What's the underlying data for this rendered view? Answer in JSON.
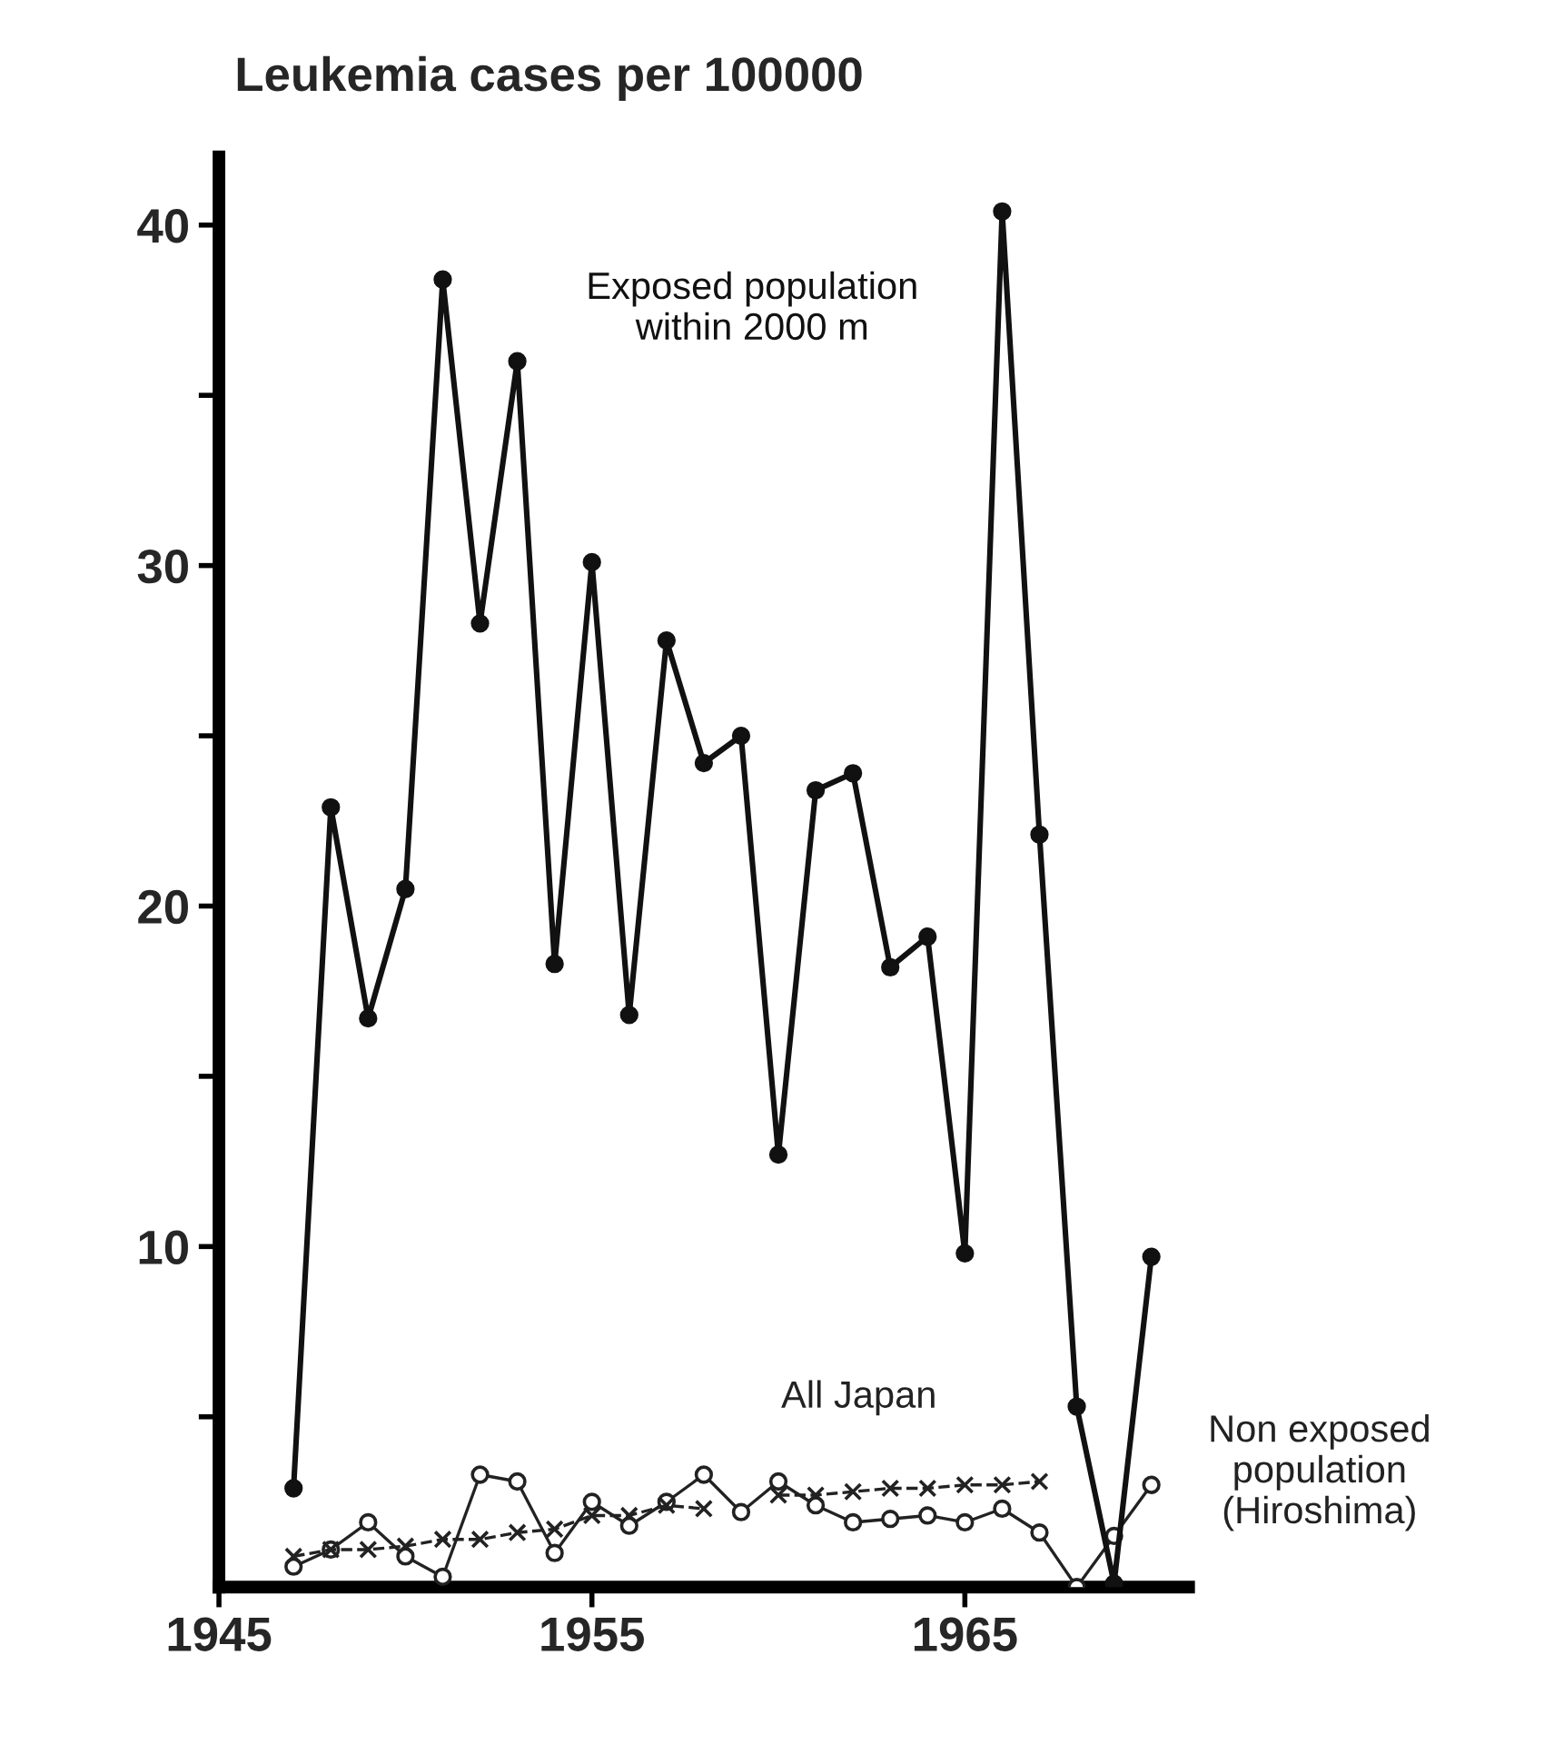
{
  "chart_data": {
    "type": "line",
    "title": "Leukemia cases per 100000",
    "x": [
      1947,
      1948,
      1949,
      1950,
      1951,
      1952,
      1953,
      1954,
      1955,
      1956,
      1957,
      1958,
      1959,
      1960,
      1961,
      1962,
      1963,
      1964,
      1965,
      1966,
      1967,
      1968,
      1969,
      1970
    ],
    "series": [
      {
        "name": "Exposed population\nwithin 2000 m",
        "color": "#111111",
        "marker": "circle",
        "line_style": "solid",
        "values": [
          2.9,
          22.9,
          16.7,
          20.5,
          38.4,
          28.3,
          36.0,
          18.3,
          30.1,
          16.8,
          27.8,
          24.2,
          25.0,
          12.7,
          23.4,
          23.9,
          18.2,
          19.1,
          9.8,
          40.4,
          22.1,
          5.3,
          0.1,
          9.7
        ]
      },
      {
        "name": "All Japan",
        "color": "#222222",
        "marker": "cross",
        "line_style": "dashed",
        "values": [
          0.9,
          1.1,
          1.1,
          1.2,
          1.4,
          1.4,
          1.6,
          1.7,
          2.1,
          2.1,
          2.4,
          2.3,
          null,
          2.7,
          2.7,
          2.8,
          2.9,
          2.9,
          3.0,
          3.0,
          3.1,
          null,
          null,
          null
        ]
      },
      {
        "name": "Non exposed\npopulation\n(Hiroshima)",
        "color": "#222222",
        "marker": "circle_open",
        "line_style": "solid",
        "values": [
          0.6,
          1.1,
          1.9,
          0.9,
          0.3,
          3.3,
          3.1,
          1.0,
          2.5,
          1.8,
          2.5,
          3.3,
          2.2,
          3.1,
          2.4,
          1.9,
          2.0,
          2.1,
          1.9,
          2.3,
          1.6,
          0.0,
          1.5,
          3.0
        ]
      }
    ],
    "xlim": [
      1945,
      1971
    ],
    "xticks": [
      1945,
      1955,
      1965
    ],
    "ylim": [
      0,
      42
    ],
    "yticks": [
      {
        "value": 5,
        "label": null
      },
      10,
      {
        "value": 15,
        "label": null
      },
      20,
      {
        "value": 25,
        "label": null
      },
      30,
      {
        "value": 35,
        "label": null
      },
      40
    ],
    "grid": false,
    "legend": false
  }
}
